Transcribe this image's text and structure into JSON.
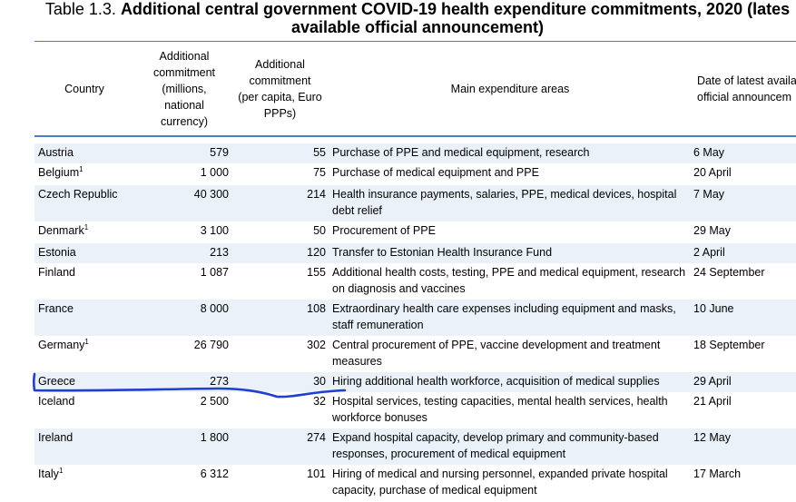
{
  "title": {
    "prefix": "Table 1.3. ",
    "line1_bold": "Additional central government COVID-19 health expenditure commitments, 2020 (lates",
    "line2_bold": "available official announcement)"
  },
  "header": {
    "country": "Country",
    "commitment_lines": [
      "Additional",
      "commitment",
      "(millions,",
      "national",
      "currency)"
    ],
    "per_capita_lines": [
      "Additional",
      "commitment",
      "(per capita, Euro",
      "PPPs)"
    ],
    "areas": "Main expenditure areas",
    "date_lines": [
      "Date of latest availa",
      "official announcem"
    ]
  },
  "rows": [
    {
      "country": "Austria",
      "sup": "",
      "commitment": "579",
      "per_capita": "55",
      "areas": "Purchase of PPE and medical equipment, research",
      "date": "6 May"
    },
    {
      "country": "Belgium",
      "sup": "1",
      "commitment": "1 000",
      "per_capita": "75",
      "areas": "Purchase of medical equipment and PPE",
      "date": "20 April"
    },
    {
      "country": "Czech Republic",
      "sup": "",
      "commitment": "40 300",
      "per_capita": "214",
      "areas": "Health insurance payments, salaries, PPE, medical devices, hospital debt relief",
      "date": "7 May"
    },
    {
      "country": "Denmark",
      "sup": "1",
      "commitment": "3 100",
      "per_capita": "50",
      "areas": "Procurement of PPE",
      "date": "29 May"
    },
    {
      "country": "Estonia",
      "sup": "",
      "commitment": "213",
      "per_capita": "120",
      "areas": "Transfer to Estonian Health Insurance Fund",
      "date": "2 April"
    },
    {
      "country": "Finland",
      "sup": "",
      "commitment": "1 087",
      "per_capita": "155",
      "areas": "Additional health costs, testing, PPE and medical equipment, research on diagnosis and vaccines",
      "date": "24 September"
    },
    {
      "country": "France",
      "sup": "",
      "commitment": "8 000",
      "per_capita": "108",
      "areas": "Extraordinary health care expenses including equipment and masks, staff remuneration",
      "date": "10 June"
    },
    {
      "country": "Germany",
      "sup": "1",
      "commitment": "26 790",
      "per_capita": "302",
      "areas": "Central procurement of PPE, vaccine development and treatment measures",
      "date": "18 September"
    },
    {
      "country": "Greece",
      "sup": "",
      "commitment": "273",
      "per_capita": "30",
      "areas": "Hiring additional health workforce, acquisition of medical supplies",
      "date": "29 April"
    },
    {
      "country": "Iceland",
      "sup": "",
      "commitment": "2 500",
      "per_capita": "32",
      "areas": "Hospital services, testing capacities, mental health services, health workforce bonuses",
      "date": "21 April"
    },
    {
      "country": "Ireland",
      "sup": "",
      "commitment": "1 800",
      "per_capita": "274",
      "areas": "Expand hospital capacity, develop primary and community-based responses, procurement of medical equipment",
      "date": "12 May"
    },
    {
      "country": "Italy",
      "sup": "1",
      "commitment": "6 312",
      "per_capita": "101",
      "areas": "Hiring of medical and nursing personnel, expanded private hospital capacity, purchase of medical equipment",
      "date": "17 March"
    }
  ],
  "colors": {
    "rule": "#4a7ec0",
    "row_shade": "#eaf1f8",
    "annotation": "#1f3fd1"
  }
}
